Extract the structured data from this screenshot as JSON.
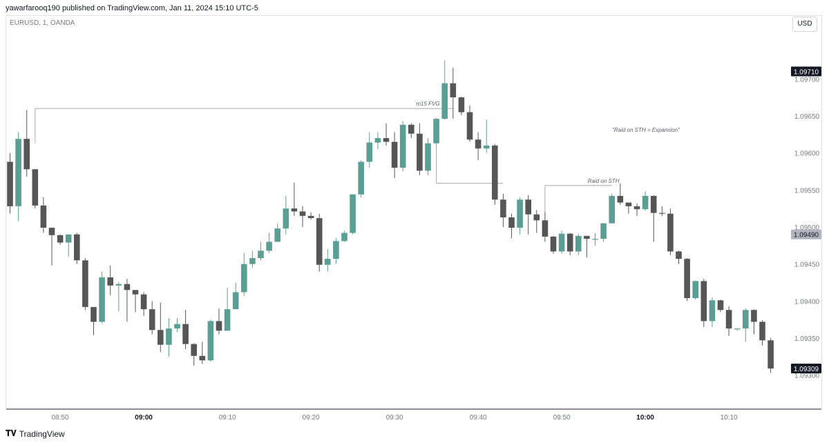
{
  "header": {
    "text": "yawarfarooq190 published on TradingView.com, Jan 11, 2024 15:10 UTC-5"
  },
  "symbol": {
    "text": "EURUSD, 1, OANDA"
  },
  "currency": {
    "label": "USD"
  },
  "footer": {
    "logo": "𝐓𝐕",
    "brand": "TradingView"
  },
  "colors": {
    "up": "#5b9e94",
    "down": "#565656",
    "line": "#a8a8a8",
    "annotation": "#5d606b"
  },
  "chart_data": {
    "type": "candlestick",
    "title": "",
    "ylim": [
      1.09255,
      1.09785
    ],
    "y_ticks": [
      "1.09700",
      "1.09650",
      "1.09600",
      "1.09550",
      "1.09500",
      "1.09450",
      "1.09400",
      "1.09350",
      "1.09300"
    ],
    "x_ticks": [
      {
        "label": "08:50",
        "bold": false
      },
      {
        "label": "09:00",
        "bold": true
      },
      {
        "label": "09:10",
        "bold": false
      },
      {
        "label": "09:20",
        "bold": false
      },
      {
        "label": "09:30",
        "bold": false
      },
      {
        "label": "09:40",
        "bold": false
      },
      {
        "label": "09:50",
        "bold": false
      },
      {
        "label": "10:00",
        "bold": true
      },
      {
        "label": "10:10",
        "bold": false
      }
    ],
    "price_labels": [
      {
        "value": 1.0971,
        "text": "1.09710",
        "style": "dark"
      },
      {
        "value": 1.0949,
        "text": "1.09490",
        "style": "grey"
      },
      {
        "value": 1.09309,
        "text": "1.09309",
        "style": "dark"
      }
    ],
    "candles": [
      [
        1.09588,
        1.09528,
        1.096,
        1.09518
      ],
      [
        1.09528,
        1.09619,
        1.09628,
        1.09508
      ],
      [
        1.09619,
        1.09578,
        1.09658,
        1.09568
      ],
      [
        1.09578,
        1.09529,
        1.09575,
        1.09525
      ],
      [
        1.09529,
        1.09499,
        1.0954,
        1.09492
      ],
      [
        1.09499,
        1.09489,
        1.09495,
        1.09448
      ],
      [
        1.09489,
        1.09479,
        1.0949,
        1.09476
      ],
      [
        1.09479,
        1.0949,
        1.0949,
        1.0946
      ],
      [
        1.0949,
        1.09455,
        1.09492,
        1.0945
      ],
      [
        1.09455,
        1.09392,
        1.09458,
        1.09388
      ],
      [
        1.09392,
        1.09372,
        1.09392,
        1.09354
      ],
      [
        1.09372,
        1.09432,
        1.0944,
        1.0937
      ],
      [
        1.09432,
        1.09421,
        1.09448,
        1.09408
      ],
      [
        1.09421,
        1.09423,
        1.09426,
        1.09386
      ],
      [
        1.09423,
        1.09415,
        1.0943,
        1.09372
      ],
      [
        1.09415,
        1.09409,
        1.09412,
        1.09385
      ],
      [
        1.09409,
        1.09389,
        1.09412,
        1.0938
      ],
      [
        1.09389,
        1.09361,
        1.094,
        1.09355
      ],
      [
        1.09361,
        1.09341,
        1.09398,
        1.09331
      ],
      [
        1.09341,
        1.09363,
        1.09377,
        1.09325
      ],
      [
        1.09363,
        1.09369,
        1.09377,
        1.09358
      ],
      [
        1.09369,
        1.09342,
        1.09388,
        1.09335
      ],
      [
        1.09342,
        1.09326,
        1.09343,
        1.09313
      ],
      [
        1.09326,
        1.0932,
        1.09345,
        1.09315
      ],
      [
        1.0932,
        1.09373,
        1.09375,
        1.09318
      ],
      [
        1.09373,
        1.0936,
        1.0939,
        1.09355
      ],
      [
        1.0936,
        1.09389,
        1.09418,
        1.0936
      ],
      [
        1.09389,
        1.09412,
        1.09425,
        1.09398
      ],
      [
        1.09412,
        1.0945,
        1.09465,
        1.09407
      ],
      [
        1.0945,
        1.09458,
        1.09468,
        1.09445
      ],
      [
        1.09458,
        1.09468,
        1.0948,
        1.09455
      ],
      [
        1.09468,
        1.0948,
        1.09492,
        1.09465
      ],
      [
        1.0948,
        1.09498,
        1.09505,
        1.0948
      ],
      [
        1.09498,
        1.09525,
        1.09542,
        1.0949
      ],
      [
        1.09525,
        1.09521,
        1.0956,
        1.09515
      ],
      [
        1.09521,
        1.09515,
        1.09528,
        1.095
      ],
      [
        1.09515,
        1.09512,
        1.0952,
        1.0951
      ],
      [
        1.09512,
        1.09449,
        1.09518,
        1.0944
      ],
      [
        1.09449,
        1.09457,
        1.0947,
        1.0944
      ],
      [
        1.09457,
        1.09481,
        1.09485,
        1.0945
      ],
      [
        1.09481,
        1.09492,
        1.09495,
        1.0948
      ],
      [
        1.09492,
        1.09544,
        1.09544,
        1.0949
      ],
      [
        1.09544,
        1.09588,
        1.0959,
        1.0954
      ],
      [
        1.09588,
        1.09614,
        1.09628,
        1.0958
      ],
      [
        1.09614,
        1.0962,
        1.09628,
        1.09605
      ],
      [
        1.0962,
        1.09615,
        1.0964,
        1.0961
      ],
      [
        1.09615,
        1.0958,
        1.09628,
        1.09566
      ],
      [
        1.0958,
        1.09638,
        1.09643,
        1.09575
      ],
      [
        1.09638,
        1.09626,
        1.0964,
        1.0962
      ],
      [
        1.09626,
        1.09576,
        1.0964,
        1.0957
      ],
      [
        1.09576,
        1.09613,
        1.0962,
        1.0957
      ],
      [
        1.09613,
        1.09646,
        1.09647,
        1.0961
      ],
      [
        1.09646,
        1.09694,
        1.09725,
        1.09645
      ],
      [
        1.09694,
        1.09675,
        1.09715,
        1.09646
      ],
      [
        1.09675,
        1.09655,
        1.09676,
        1.09651
      ],
      [
        1.09655,
        1.09618,
        1.09664,
        1.09615
      ],
      [
        1.09618,
        1.09606,
        1.09628,
        1.0959
      ],
      [
        1.09606,
        1.0961,
        1.09645,
        1.096
      ],
      [
        1.0961,
        1.09537,
        1.09612,
        1.0953
      ],
      [
        1.09537,
        1.09513,
        1.09545,
        1.095
      ],
      [
        1.09513,
        1.09499,
        1.09518,
        1.09485
      ],
      [
        1.09499,
        1.09537,
        1.0954,
        1.0949
      ],
      [
        1.09537,
        1.09517,
        1.09543,
        1.0949
      ],
      [
        1.09517,
        1.09509,
        1.09523,
        1.09492
      ],
      [
        1.09509,
        1.09487,
        1.0952,
        1.0948
      ],
      [
        1.09487,
        1.09467,
        1.09488,
        1.09464
      ],
      [
        1.09467,
        1.09491,
        1.09495,
        1.09464
      ],
      [
        1.09491,
        1.09467,
        1.09492,
        1.09462
      ],
      [
        1.09467,
        1.09488,
        1.09491,
        1.09462
      ],
      [
        1.09488,
        1.09484,
        1.09488,
        1.09459
      ],
      [
        1.09484,
        1.09484,
        1.09492,
        1.09475
      ],
      [
        1.09484,
        1.09505,
        1.09505,
        1.0948
      ],
      [
        1.09505,
        1.09542,
        1.09545,
        1.09505
      ],
      [
        1.09542,
        1.09533,
        1.09559,
        1.0953
      ],
      [
        1.09533,
        1.09528,
        1.09532,
        1.09518
      ],
      [
        1.09528,
        1.09524,
        1.09532,
        1.09515
      ],
      [
        1.09524,
        1.09542,
        1.09548,
        1.09522
      ],
      [
        1.09542,
        1.09519,
        1.09543,
        1.0948
      ],
      [
        1.09519,
        1.09518,
        1.09528,
        1.09515
      ],
      [
        1.09518,
        1.09467,
        1.09525,
        1.09462
      ],
      [
        1.09467,
        1.09457,
        1.09468,
        1.0945
      ],
      [
        1.09457,
        1.09404,
        1.09458,
        1.094
      ],
      [
        1.09404,
        1.09427,
        1.09428,
        1.09402
      ],
      [
        1.09427,
        1.09373,
        1.0943,
        1.09365
      ],
      [
        1.09373,
        1.09401,
        1.09405,
        1.09365
      ],
      [
        1.09401,
        1.09388,
        1.09402,
        1.09385
      ],
      [
        1.09388,
        1.09363,
        1.09393,
        1.09353
      ],
      [
        1.09363,
        1.09363,
        1.09363,
        1.0936
      ],
      [
        1.09363,
        1.09388,
        1.0939,
        1.09345
      ],
      [
        1.09388,
        1.09372,
        1.09389,
        1.09355
      ],
      [
        1.09372,
        1.09347,
        1.09374,
        1.0934
      ],
      [
        1.09347,
        1.09309,
        1.0935,
        1.09303
      ]
    ],
    "annotations": [
      {
        "text": "m15 FVG"
      },
      {
        "text": "Raid on STH"
      },
      {
        "text": "\"Raid on STH = Expansion\""
      }
    ],
    "levels": [
      {
        "name": "m15-fvg-line",
        "price": 1.0966,
        "from_candle": 3,
        "to_candle": 53
      },
      {
        "name": "sth-line",
        "price": 1.09556,
        "from_candle": 64,
        "to_candle": 72
      },
      {
        "name": "raid-level-line",
        "price": 1.09559,
        "from_candle": 51,
        "to_candle": 59
      }
    ]
  }
}
